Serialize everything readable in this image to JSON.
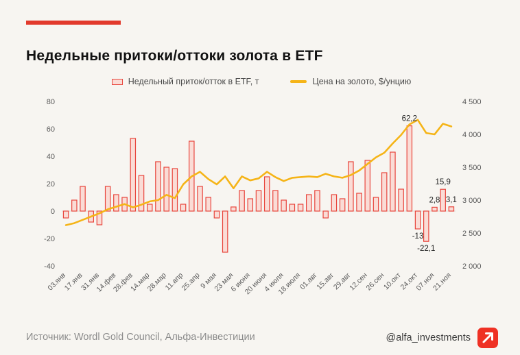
{
  "title": "Недельные притоки/оттоки золота в ETF",
  "legend": {
    "bars_label": "Недельный приток/отток в ETF, т",
    "line_label": "Цена на золото, $/унцию"
  },
  "footer": {
    "source": "Источник: Wordl Gold Council, Альфа-Инвестиции",
    "handle": "@alfa_investments",
    "logo_icon": "arrow-up-right"
  },
  "colors": {
    "accent_red": "#E23A2C",
    "bar_fill": "#FADCD6",
    "bar_stroke": "#E8453C",
    "line_gold": "#F5B417",
    "background": "#F7F5F1",
    "axis_text": "#5A5A5A",
    "annotation_text": "#222222",
    "title_text": "#121212",
    "footer_text": "#8C8C8C",
    "zero_line": "#DDD9D3"
  },
  "chart_data": {
    "type": "bar",
    "title": "Недельные притоки/оттоки золота в ETF",
    "legend_position": "top",
    "grid": false,
    "x_tick_every": 2,
    "x_tick_labels": [
      "03.янв",
      "17.янв",
      "31.янв",
      "14.фев",
      "28.фев",
      "14.мар",
      "28.мар",
      "11.апр",
      "25.апр",
      "9 мая",
      "23 мая",
      "6 июня",
      "20 июня",
      "4 июля",
      "18.июля",
      "01.авг",
      "15.авг",
      "29.авг",
      "12.сен",
      "26.сен",
      "10.окт",
      "24.окт",
      "07.ноя",
      "21.ноя"
    ],
    "left_axis": {
      "label": "Недельный приток/отток в ETF, т",
      "range": [
        -40,
        80
      ],
      "ticks": [
        80,
        60,
        40,
        20,
        0,
        -20,
        -40
      ],
      "tick_labels": [
        "80",
        "60",
        "40",
        "20",
        "0",
        "-20",
        "-40"
      ]
    },
    "right_axis": {
      "label": "Цена на золото, $/унцию",
      "range": [
        2000,
        4500
      ],
      "ticks": [
        4500,
        4000,
        3500,
        3000,
        2500,
        2000
      ],
      "tick_labels": [
        "4 500",
        "4 000",
        "3 500",
        "3 000",
        "2 500",
        "2 000"
      ]
    },
    "series": [
      {
        "name": "Недельный приток/отток в ETF, т",
        "type": "bar",
        "axis": "left",
        "values": [
          -5,
          8,
          18,
          -8,
          -10,
          18,
          12,
          10,
          53,
          26,
          5,
          36,
          32,
          31,
          5,
          51,
          18,
          10,
          -5,
          -30,
          3,
          15,
          9,
          15,
          25,
          15,
          8,
          5,
          5,
          12,
          15,
          -5,
          12,
          9,
          36,
          13,
          37,
          10,
          28,
          43,
          16,
          62.2,
          -13,
          -22.1,
          2.8,
          15.9,
          3.1
        ]
      },
      {
        "name": "Цена на золото, $/унцию",
        "type": "line",
        "axis": "right",
        "values": [
          2620,
          2650,
          2700,
          2750,
          2800,
          2860,
          2900,
          2940,
          2890,
          2930,
          2980,
          3000,
          3080,
          3030,
          3240,
          3360,
          3430,
          3320,
          3240,
          3360,
          3180,
          3360,
          3300,
          3330,
          3430,
          3350,
          3290,
          3340,
          3350,
          3360,
          3350,
          3400,
          3360,
          3340,
          3380,
          3450,
          3550,
          3650,
          3720,
          3860,
          3990,
          4150,
          4220,
          4020,
          4000,
          4160,
          4120
        ]
      }
    ],
    "annotations": [
      {
        "index": 41,
        "text": "62,2",
        "position": "above"
      },
      {
        "index": 42,
        "text": "-13",
        "position": "below"
      },
      {
        "index": 43,
        "text": "-22,1",
        "position": "below"
      },
      {
        "index": 44,
        "text": "2,8",
        "position": "above"
      },
      {
        "index": 45,
        "text": "15,9",
        "position": "above"
      },
      {
        "index": 46,
        "text": "3,1",
        "position": "above"
      }
    ]
  }
}
